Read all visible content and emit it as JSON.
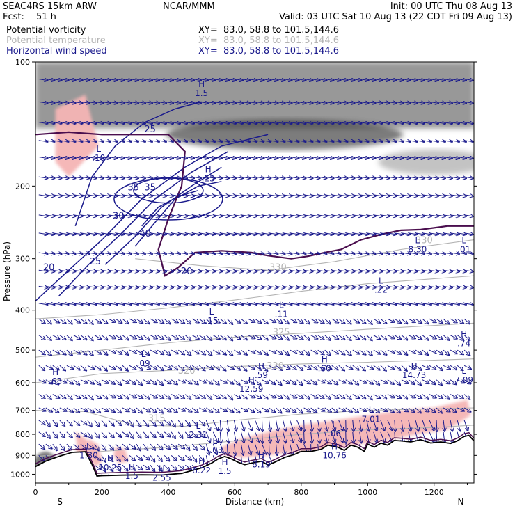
{
  "header": {
    "model": "SEAC4RS 15km ARW",
    "fcst_label": "Fcst:",
    "fcst_value": "51 h",
    "center": "NCAR/MMM",
    "init": "Init: 00 UTC Thu 08 Aug 13",
    "valid": "Valid: 03 UTC Sat 10 Aug 13 (22 CDT Fri 09 Aug 13)"
  },
  "fields": [
    {
      "name": "Potential vorticity",
      "xy": "XY=  83.0, 58.8 to 101.5,144.6",
      "color": "#000000"
    },
    {
      "name": "Potential temperature",
      "xy": "XY=  83.0, 58.8 to 101.5,144.6",
      "color": "#b4b4b4"
    },
    {
      "name": "Horizontal wind speed",
      "xy": "XY=  83.0, 58.8 to 101.5,144.6",
      "color": "#1a1a8c"
    }
  ],
  "colors": {
    "pv_shade": "#444444",
    "pv_pink": "#f5b5b5",
    "isotach": "#1a1a8c",
    "theta": "#b4b4b4",
    "wind_barb": "#1a1a8c",
    "tropopause": "#4a0e4e",
    "terrain": "#000000"
  },
  "chart_data": {
    "type": "cross-section",
    "xlabel": "Distance (km)",
    "ylabel": "Pressure (hPa)",
    "x_ticks": [
      "0",
      "200",
      "400",
      "600",
      "800",
      "1000",
      "1200"
    ],
    "y_ticks": [
      "100",
      "200",
      "300",
      "400",
      "500",
      "600",
      "700",
      "800",
      "900",
      "1000"
    ],
    "xlim": [
      0,
      1320
    ],
    "ylim": [
      1050,
      100
    ],
    "y_scale": "log",
    "endpoints": [
      "S",
      "N"
    ],
    "isotach_labels": [
      {
        "text": "20",
        "x": 40,
        "p": 320
      },
      {
        "text": "25",
        "x": 180,
        "p": 310
      },
      {
        "text": "30",
        "x": 250,
        "p": 240
      },
      {
        "text": "35",
        "x": 295,
        "p": 205
      },
      {
        "text": "40",
        "x": 330,
        "p": 265
      },
      {
        "text": "35",
        "x": 345,
        "p": 205
      },
      {
        "text": "20",
        "x": 455,
        "p": 327
      },
      {
        "text": "25",
        "x": 345,
        "p": 148
      }
    ],
    "theta_labels": [
      {
        "text": "315",
        "x": 365,
        "p": 745
      },
      {
        "text": "320",
        "x": 455,
        "p": 570
      },
      {
        "text": "320",
        "x": 722,
        "p": 555
      },
      {
        "text": "325",
        "x": 740,
        "p": 460
      },
      {
        "text": "330",
        "x": 730,
        "p": 320
      },
      {
        "text": "330",
        "x": 1170,
        "p": 275
      }
    ],
    "extrema": [
      {
        "type": "H",
        "value": ".63",
        "x": 60,
        "p": 575
      },
      {
        "type": "L",
        "value": ".09",
        "x": 325,
        "p": 520
      },
      {
        "type": "L",
        "value": ".15",
        "x": 530,
        "p": 410
      },
      {
        "type": "L",
        "value": ".11",
        "x": 740,
        "p": 395
      },
      {
        "type": "H",
        "value": ".59",
        "x": 680,
        "p": 555
      },
      {
        "type": "H",
        "value": "12.59",
        "x": 650,
        "p": 600
      },
      {
        "type": "H",
        "value": ".60",
        "x": 870,
        "p": 535
      },
      {
        "type": "L",
        "value": ".22",
        "x": 1040,
        "p": 345
      },
      {
        "type": "L",
        "value": "8.30",
        "x": 1150,
        "p": 275
      },
      {
        "type": "L",
        "value": ".01",
        "x": 1290,
        "p": 275
      },
      {
        "type": "H",
        "value": ".74",
        "x": 1290,
        "p": 465
      },
      {
        "type": "H",
        "value": "14.73",
        "x": 1140,
        "p": 555
      },
      {
        "type": "L",
        "value": "7.09",
        "x": 1290,
        "p": 570
      },
      {
        "type": "L",
        "value": "7.01",
        "x": 1010,
        "p": 710
      },
      {
        "type": "L",
        "value": ".06",
        "x": 900,
        "p": 770
      },
      {
        "type": "L",
        "value": "2.31",
        "x": 490,
        "p": 775
      },
      {
        "type": "L",
        "value": "-.03",
        "x": 540,
        "p": 845
      },
      {
        "type": "L",
        "value": "1.30",
        "x": 160,
        "p": 870
      },
      {
        "type": "H",
        "value": "10.25",
        "x": 225,
        "p": 930
      },
      {
        "type": "H",
        "value": "8.19",
        "x": 680,
        "p": 915
      },
      {
        "type": "H",
        "value": "10.76",
        "x": 900,
        "p": 870
      },
      {
        "type": "H",
        "value": "8.22",
        "x": 500,
        "p": 945
      },
      {
        "type": "H",
        "value": "1.5",
        "x": 570,
        "p": 950
      },
      {
        "type": "H",
        "value": "2.55",
        "x": 380,
        "p": 985
      },
      {
        "type": "H",
        "value": "1.5",
        "x": 290,
        "p": 975
      },
      {
        "type": "H",
        "value": "1.5",
        "x": 500,
        "p": 115
      },
      {
        "type": "L",
        "value": ".10",
        "x": 190,
        "p": 165
      },
      {
        "type": "H",
        "value": ".15",
        "x": 520,
        "p": 185
      }
    ]
  }
}
